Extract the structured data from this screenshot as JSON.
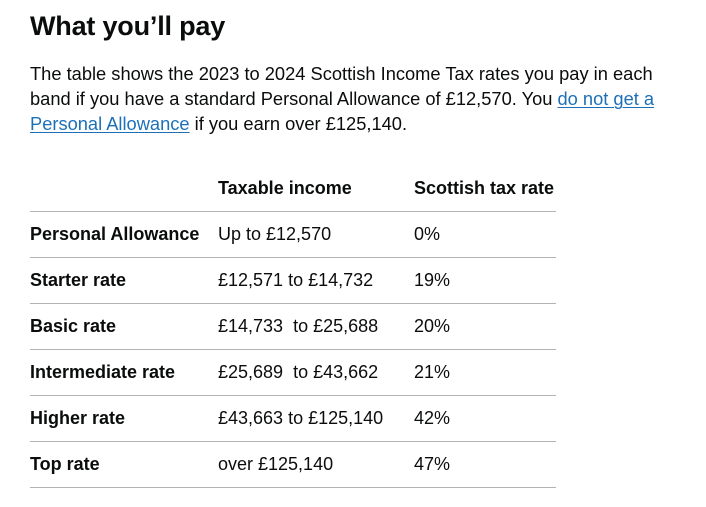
{
  "heading": "What you’ll pay",
  "intro": {
    "before": "The table shows the 2023 to 2024 Scottish Income Tax rates you pay in each band if you have a standard Personal Allowance of £12,570. You ",
    "link": "do not get a Personal Allowance",
    "after": " if you earn over £125,140."
  },
  "table": {
    "headers": [
      "",
      "Taxable income",
      "Scottish tax rate"
    ],
    "rows": [
      {
        "band": "Personal Allowance",
        "income": "Up to £12,570",
        "rate": "0%"
      },
      {
        "band": "Starter rate",
        "income": "£12,571 to £14,732",
        "rate": "19%"
      },
      {
        "band": "Basic rate",
        "income": "£14,733  to £25,688",
        "rate": "20%"
      },
      {
        "band": "Intermediate rate",
        "income": "£25,689  to £43,662",
        "rate": "21%"
      },
      {
        "band": "Higher rate",
        "income": "£43,663 to £125,140",
        "rate": "42%"
      },
      {
        "band": "Top rate",
        "income": "over £125,140",
        "rate": "47%"
      }
    ]
  },
  "colors": {
    "text": "#0b0c0c",
    "link": "#1d70b8",
    "border": "#b1b4b6"
  }
}
